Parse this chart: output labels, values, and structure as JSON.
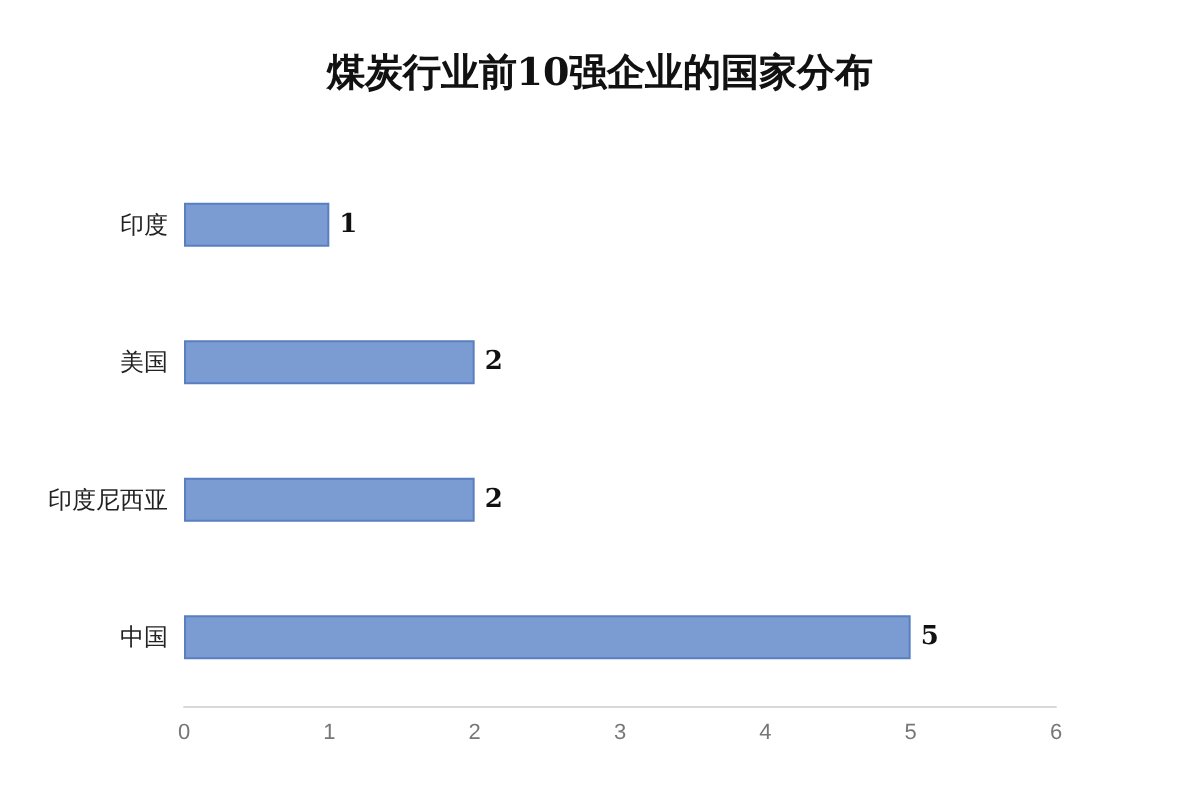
{
  "chart_data": {
    "type": "bar",
    "orientation": "horizontal",
    "title": "煤炭行业前10强企业的国家分布",
    "categories": [
      "印度",
      "美国",
      "印度尼西亚",
      "中国"
    ],
    "values": [
      1,
      2,
      2,
      5
    ],
    "color": "#7b9bd3",
    "xlim": [
      0,
      6
    ],
    "xticks": [
      0,
      1,
      2,
      3,
      4,
      5,
      6
    ],
    "grid": false,
    "data_labels": true
  }
}
